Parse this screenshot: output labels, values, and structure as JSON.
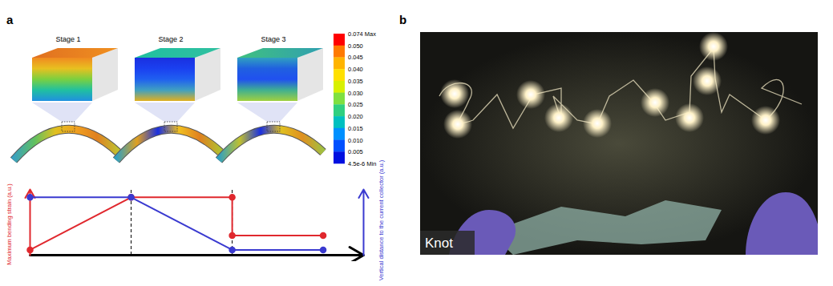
{
  "figure": {
    "panel_labels": [
      "a",
      "b"
    ],
    "stages": [
      "Stage 1",
      "Stage 2",
      "Stage 3"
    ],
    "colorbar": {
      "ticks": [
        {
          "value": 0.074,
          "label": "0.074 Max"
        },
        {
          "value": 0.05,
          "label": "0.050"
        },
        0.045,
        {
          "value": 0.04,
          "label": "0.040"
        },
        0.035,
        {
          "value": 0.03,
          "label": "0.030"
        },
        0.025,
        {
          "value": 0.02,
          "label": "0.020"
        },
        0.015,
        {
          "value": 0.01,
          "label": "0.010"
        },
        0.005,
        {
          "value": 4.5e-06,
          "label": "4.5e-6 Min"
        }
      ],
      "colors": [
        "#ff0000",
        "#ff7a00",
        "#ffb400",
        "#ffe000",
        "#d8f000",
        "#7fe040",
        "#30d080",
        "#00c0c0",
        "#0090ff",
        "#0050ff",
        "#0010e0"
      ]
    },
    "photo_caption": "Knot"
  },
  "chart_data": {
    "type": "line",
    "ylabel": "Maximum bending strain (a.u.)",
    "y2label": "Vertical distance to the current collector (a.u.)",
    "xlim": [
      0,
      3.3
    ],
    "ylim": [
      0,
      1
    ],
    "y2lim": [
      0,
      1
    ],
    "xticks": [],
    "yticks": [],
    "y2ticks": [],
    "tick_labels": false,
    "vlines": [
      1,
      2
    ],
    "series": [
      {
        "color": "#e0282e",
        "marker": "circle",
        "x": [
          0,
          1,
          2,
          2,
          2.9
        ],
        "values": [
          0.08,
          0.88,
          0.88,
          0.3,
          0.3
        ]
      },
      {
        "color": "#3a3ad0",
        "marker": "circle",
        "axis": "y2",
        "x": [
          0,
          1,
          2,
          2.9
        ],
        "values": [
          0.88,
          0.88,
          0.08,
          0.08
        ]
      }
    ]
  }
}
